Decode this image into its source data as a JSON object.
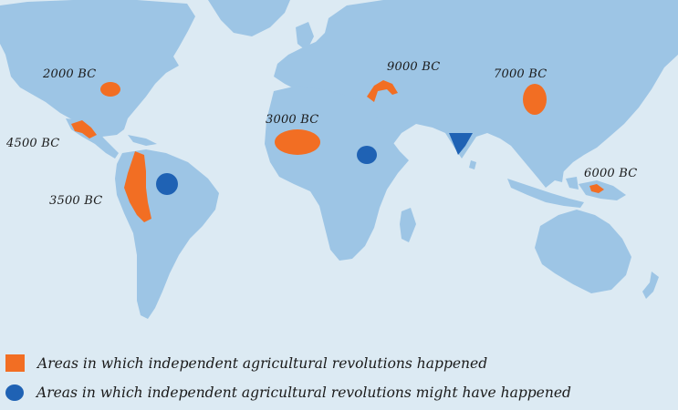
{
  "colors": {
    "ocean": "#dceaf3",
    "land": "#9dc5e5",
    "happened": "#f26e23",
    "might_have_happened": "#1f62b4"
  },
  "regions": [
    {
      "id": "north-america",
      "label": "2000 BC",
      "category": "happened"
    },
    {
      "id": "mesoamerica",
      "label": "4500 BC",
      "category": "happened"
    },
    {
      "id": "andes",
      "label": "3500 BC",
      "category": "happened"
    },
    {
      "id": "sahel",
      "label": "3000 BC",
      "category": "happened"
    },
    {
      "id": "fertile-crescent",
      "label": "9000 BC",
      "category": "happened"
    },
    {
      "id": "china",
      "label": "7000 BC",
      "category": "happened"
    },
    {
      "id": "new-guinea",
      "label": "6000 BC",
      "category": "happened"
    },
    {
      "id": "amazon",
      "category": "might_have_happened"
    },
    {
      "id": "ethiopia",
      "category": "might_have_happened"
    },
    {
      "id": "south-india",
      "category": "might_have_happened"
    }
  ],
  "legend": {
    "happened": "Areas in which independent agricultural revolutions happened",
    "might_have_happened": "Areas in which independent agricultural revolutions might have happened"
  }
}
